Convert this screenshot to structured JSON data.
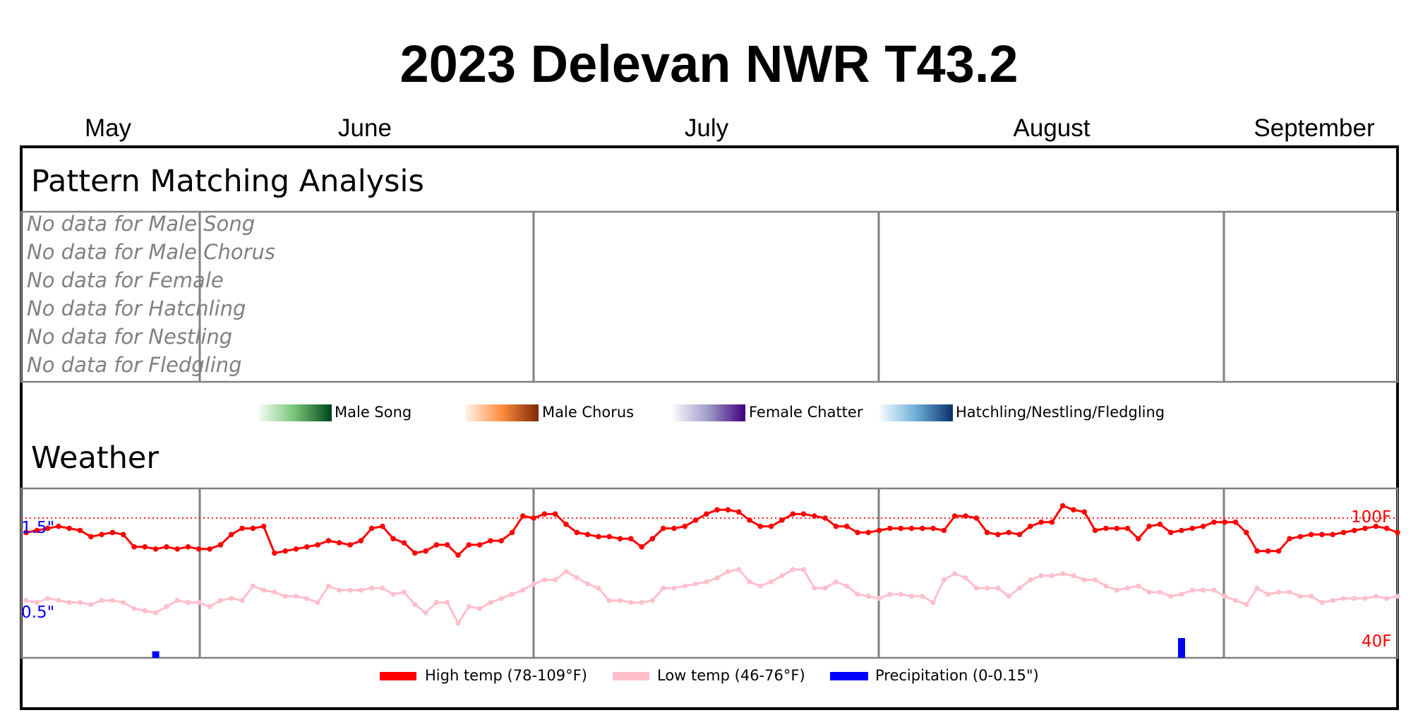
{
  "title": "2023 Delevan NWR T43.2",
  "months": [
    "May",
    "June",
    "July",
    "August",
    "September"
  ],
  "sections": {
    "pattern": "Pattern Matching Analysis",
    "weather": "Weather"
  },
  "no_data": [
    "No data for Male Song",
    "No data for Male Chorus",
    "No data for Female",
    "No data for Hatchling",
    "No data for Nestling",
    "No data for Fledgling"
  ],
  "pattern_legend": [
    "Male Song",
    "Male Chorus",
    "Female Chatter",
    "Hatchling/Nestling/Fledgling"
  ],
  "weather_legend": [
    "High temp (78-109°F)",
    "Low temp (46-76°F)",
    "Precipitation (0-0.15\")"
  ],
  "colors": {
    "high": "#ff0000",
    "low": "#ffc0cb",
    "precip": "#0000ff",
    "male_song": "#00441b",
    "male_chorus": "#7f2704",
    "female": "#3f007d",
    "hatchling": "#08306b"
  },
  "chart_data": {
    "type": "line",
    "x_start": "2023-05-09",
    "x_end": "2023-09-24",
    "temp_axis": {
      "labels": [
        "100F",
        "40F"
      ],
      "values": [
        100,
        40
      ]
    },
    "precip_axis": {
      "labels": [
        "1.5\"",
        "0.5\""
      ],
      "values": [
        1.5,
        0.5
      ]
    },
    "reference_line": 100,
    "series": [
      {
        "name": "High temp (78-109°F)",
        "color": "#ff0000",
        "values": [
          93,
          94,
          95,
          96,
          95,
          94,
          91,
          92,
          93,
          92,
          86,
          86,
          85,
          86,
          85,
          86,
          85,
          85,
          87,
          92,
          95,
          95,
          96,
          83,
          84,
          85,
          86,
          87,
          89,
          88,
          87,
          89,
          95,
          96,
          90,
          88,
          83,
          84,
          87,
          87,
          82,
          87,
          87,
          89,
          89,
          93,
          101,
          100,
          102,
          102,
          97,
          93,
          92,
          91,
          91,
          90,
          90,
          86,
          90,
          95,
          95,
          96,
          99,
          102,
          104,
          104,
          103,
          99,
          96,
          96,
          99,
          102,
          102,
          101,
          100,
          96,
          96,
          93,
          93,
          94,
          95,
          95,
          95,
          95,
          95,
          94,
          101,
          101,
          100,
          93,
          92,
          93,
          92,
          96,
          98,
          98,
          106,
          104,
          103,
          94,
          95,
          95,
          95,
          90,
          96,
          97,
          93,
          94,
          95,
          96,
          98,
          98,
          98,
          93,
          84,
          84,
          84,
          90,
          91,
          92,
          92,
          92,
          93,
          94,
          95,
          96,
          95,
          93
        ]
      },
      {
        "name": "Low temp (46-76°F)",
        "color": "#ffc0cb",
        "values": [
          60,
          59,
          61,
          60,
          59,
          59,
          58,
          60,
          60,
          59,
          56,
          55,
          54,
          57,
          60,
          59,
          59,
          57,
          60,
          61,
          60,
          67,
          65,
          64,
          62,
          62,
          61,
          59,
          67,
          65,
          65,
          65,
          66,
          66,
          63,
          64,
          58,
          54,
          59,
          59,
          49,
          57,
          56,
          59,
          61,
          63,
          65,
          68,
          70,
          70,
          74,
          71,
          68,
          66,
          60,
          60,
          59,
          59,
          60,
          66,
          66,
          67,
          68,
          69,
          71,
          74,
          75,
          69,
          67,
          69,
          72,
          75,
          75,
          66,
          66,
          69,
          67,
          63,
          62,
          61,
          63,
          63,
          62,
          62,
          59,
          70,
          73,
          71,
          66,
          66,
          66,
          62,
          66,
          70,
          72,
          72,
          73,
          72,
          70,
          70,
          67,
          65,
          66,
          67,
          64,
          64,
          62,
          63,
          65,
          65,
          65,
          62,
          60,
          58,
          66,
          63,
          64,
          64,
          62,
          62,
          59,
          60,
          61,
          61,
          61,
          62,
          61,
          62
        ]
      },
      {
        "name": "Precipitation (0-0.15\")",
        "color": "#0000ff",
        "values": [
          0,
          0,
          0,
          0,
          0,
          0,
          0,
          0,
          0,
          0,
          0,
          0,
          0.02,
          0,
          0,
          0,
          0,
          0,
          0,
          0,
          0,
          0,
          0,
          0,
          0,
          0,
          0,
          0,
          0,
          0,
          0,
          0,
          0,
          0,
          0,
          0,
          0,
          0,
          0,
          0,
          0,
          0,
          0,
          0,
          0,
          0,
          0,
          0,
          0,
          0,
          0,
          0,
          0,
          0,
          0,
          0,
          0,
          0,
          0,
          0,
          0,
          0,
          0,
          0,
          0,
          0,
          0,
          0,
          0,
          0,
          0,
          0,
          0,
          0,
          0,
          0,
          0,
          0,
          0,
          0,
          0,
          0,
          0,
          0,
          0,
          0,
          0,
          0,
          0,
          0,
          0,
          0,
          0,
          0,
          0,
          0,
          0,
          0,
          0,
          0,
          0,
          0,
          0,
          0,
          0,
          0,
          0,
          0.06,
          0,
          0,
          0,
          0,
          0,
          0,
          0,
          0,
          0,
          0,
          0,
          0,
          0,
          0,
          0,
          0,
          0,
          0,
          0,
          0
        ]
      }
    ]
  }
}
